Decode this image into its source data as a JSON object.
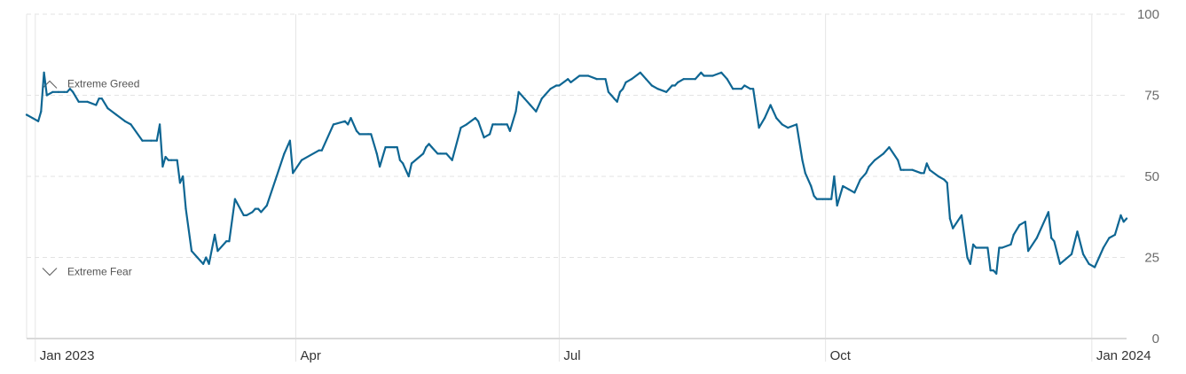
{
  "chart_data": {
    "type": "line",
    "title": "",
    "xlabel": "",
    "ylabel": "",
    "ylim": [
      0,
      100
    ],
    "yticks": [
      0,
      25,
      50,
      75,
      100
    ],
    "xlim": [
      "2022-12-29",
      "2024-01-13"
    ],
    "xticks": [
      {
        "date": "2023-01-01",
        "label": "Jan 2023"
      },
      {
        "date": "2023-04-01",
        "label": "Apr"
      },
      {
        "date": "2023-07-01",
        "label": "Jul"
      },
      {
        "date": "2023-10-01",
        "label": "Oct"
      },
      {
        "date": "2024-01-01",
        "label": "Jan 2024"
      }
    ],
    "grid": true,
    "annotations": [
      {
        "label": "Extreme Greed",
        "icon": "chevron-up-icon",
        "y": 75
      },
      {
        "label": "Extreme Fear",
        "icon": "chevron-down-icon",
        "y": 25
      }
    ],
    "colors": {
      "line": "#0e6693",
      "grid": "#e3e3e3",
      "axis_text": "#6b6b6b"
    },
    "series": [
      {
        "points": [
          [
            "2022-12-29",
            69
          ],
          [
            "2022-12-31",
            68
          ],
          [
            "2023-01-02",
            67
          ],
          [
            "2023-01-03",
            70
          ],
          [
            "2023-01-04",
            82
          ],
          [
            "2023-01-05",
            75
          ],
          [
            "2023-01-07",
            76
          ],
          [
            "2023-01-09",
            76
          ],
          [
            "2023-01-11",
            76
          ],
          [
            "2023-01-12",
            76
          ],
          [
            "2023-01-13",
            77
          ],
          [
            "2023-01-14",
            76
          ],
          [
            "2023-01-16",
            73
          ],
          [
            "2023-01-19",
            73
          ],
          [
            "2023-01-22",
            72
          ],
          [
            "2023-01-23",
            74
          ],
          [
            "2023-01-24",
            74
          ],
          [
            "2023-01-26",
            71
          ],
          [
            "2023-01-29",
            69
          ],
          [
            "2023-02-01",
            67
          ],
          [
            "2023-02-03",
            66
          ],
          [
            "2023-02-07",
            61
          ],
          [
            "2023-02-10",
            61
          ],
          [
            "2023-02-12",
            61
          ],
          [
            "2023-02-13",
            66
          ],
          [
            "2023-02-14",
            53
          ],
          [
            "2023-02-15",
            56
          ],
          [
            "2023-02-16",
            55
          ],
          [
            "2023-02-17",
            55
          ],
          [
            "2023-02-19",
            55
          ],
          [
            "2023-02-20",
            48
          ],
          [
            "2023-02-21",
            50
          ],
          [
            "2023-02-22",
            40
          ],
          [
            "2023-02-24",
            27
          ],
          [
            "2023-02-26",
            25
          ],
          [
            "2023-02-27",
            24
          ],
          [
            "2023-02-28",
            23
          ],
          [
            "2023-03-01",
            25
          ],
          [
            "2023-03-02",
            23
          ],
          [
            "2023-03-04",
            32
          ],
          [
            "2023-03-05",
            27
          ],
          [
            "2023-03-08",
            30
          ],
          [
            "2023-03-09",
            30
          ],
          [
            "2023-03-11",
            43
          ],
          [
            "2023-03-14",
            38
          ],
          [
            "2023-03-15",
            38
          ],
          [
            "2023-03-17",
            39
          ],
          [
            "2023-03-18",
            40
          ],
          [
            "2023-03-19",
            40
          ],
          [
            "2023-03-20",
            39
          ],
          [
            "2023-03-22",
            41
          ],
          [
            "2023-03-25",
            49
          ],
          [
            "2023-03-28",
            57
          ],
          [
            "2023-03-30",
            61
          ],
          [
            "2023-03-31",
            51
          ],
          [
            "2023-04-03",
            55
          ],
          [
            "2023-04-09",
            58
          ],
          [
            "2023-04-10",
            58
          ],
          [
            "2023-04-14",
            66
          ],
          [
            "2023-04-18",
            67
          ],
          [
            "2023-04-19",
            66
          ],
          [
            "2023-04-20",
            68
          ],
          [
            "2023-04-22",
            64
          ],
          [
            "2023-04-23",
            63
          ],
          [
            "2023-04-26",
            63
          ],
          [
            "2023-04-27",
            63
          ],
          [
            "2023-04-29",
            57
          ],
          [
            "2023-04-30",
            53
          ],
          [
            "2023-05-02",
            59
          ],
          [
            "2023-05-05",
            59
          ],
          [
            "2023-05-06",
            59
          ],
          [
            "2023-05-07",
            55
          ],
          [
            "2023-05-08",
            54
          ],
          [
            "2023-05-10",
            50
          ],
          [
            "2023-05-11",
            54
          ],
          [
            "2023-05-15",
            57
          ],
          [
            "2023-05-16",
            59
          ],
          [
            "2023-05-17",
            60
          ],
          [
            "2023-05-18",
            59
          ],
          [
            "2023-05-20",
            57
          ],
          [
            "2023-05-21",
            57
          ],
          [
            "2023-05-23",
            57
          ],
          [
            "2023-05-25",
            55
          ],
          [
            "2023-05-28",
            65
          ],
          [
            "2023-05-30",
            66
          ],
          [
            "2023-06-02",
            68
          ],
          [
            "2023-06-03",
            67
          ],
          [
            "2023-06-05",
            62
          ],
          [
            "2023-06-07",
            63
          ],
          [
            "2023-06-08",
            66
          ],
          [
            "2023-06-09",
            66
          ],
          [
            "2023-06-11",
            66
          ],
          [
            "2023-06-13",
            66
          ],
          [
            "2023-06-14",
            64
          ],
          [
            "2023-06-16",
            70
          ],
          [
            "2023-06-17",
            76
          ],
          [
            "2023-06-19",
            74
          ],
          [
            "2023-06-21",
            72
          ],
          [
            "2023-06-23",
            70
          ],
          [
            "2023-06-25",
            74
          ],
          [
            "2023-06-26",
            75
          ],
          [
            "2023-06-28",
            77
          ],
          [
            "2023-06-30",
            78
          ],
          [
            "2023-07-01",
            78
          ],
          [
            "2023-07-04",
            80
          ],
          [
            "2023-07-05",
            79
          ],
          [
            "2023-07-08",
            81
          ],
          [
            "2023-07-11",
            81
          ],
          [
            "2023-07-14",
            80
          ],
          [
            "2023-07-17",
            80
          ],
          [
            "2023-07-18",
            76
          ],
          [
            "2023-07-19",
            75
          ],
          [
            "2023-07-20",
            74
          ],
          [
            "2023-07-21",
            73
          ],
          [
            "2023-07-22",
            76
          ],
          [
            "2023-07-23",
            77
          ],
          [
            "2023-07-24",
            79
          ],
          [
            "2023-07-26",
            80
          ],
          [
            "2023-07-29",
            82
          ],
          [
            "2023-07-31",
            80
          ],
          [
            "2023-08-02",
            78
          ],
          [
            "2023-08-04",
            77
          ],
          [
            "2023-08-07",
            76
          ],
          [
            "2023-08-09",
            78
          ],
          [
            "2023-08-10",
            78
          ],
          [
            "2023-08-11",
            79
          ],
          [
            "2023-08-13",
            80
          ],
          [
            "2023-08-17",
            80
          ],
          [
            "2023-08-18",
            81
          ],
          [
            "2023-08-19",
            82
          ],
          [
            "2023-08-20",
            81
          ],
          [
            "2023-08-23",
            81
          ],
          [
            "2023-08-26",
            82
          ],
          [
            "2023-08-28",
            80
          ],
          [
            "2023-08-30",
            77
          ],
          [
            "2023-09-02",
            77
          ],
          [
            "2023-09-03",
            78
          ],
          [
            "2023-09-05",
            77
          ],
          [
            "2023-09-06",
            77
          ],
          [
            "2023-09-08",
            65
          ],
          [
            "2023-09-10",
            68
          ],
          [
            "2023-09-12",
            72
          ],
          [
            "2023-09-14",
            68
          ],
          [
            "2023-09-16",
            66
          ],
          [
            "2023-09-18",
            65
          ],
          [
            "2023-09-21",
            66
          ],
          [
            "2023-09-23",
            55
          ],
          [
            "2023-09-24",
            51
          ],
          [
            "2023-09-26",
            47
          ],
          [
            "2023-09-27",
            44
          ],
          [
            "2023-09-28",
            43
          ],
          [
            "2023-09-30",
            43
          ],
          [
            "2023-10-02",
            43
          ],
          [
            "2023-10-03",
            43
          ],
          [
            "2023-10-04",
            50
          ],
          [
            "2023-10-05",
            41
          ],
          [
            "2023-10-07",
            47
          ],
          [
            "2023-10-09",
            46
          ],
          [
            "2023-10-11",
            45
          ],
          [
            "2023-10-13",
            49
          ],
          [
            "2023-10-15",
            51
          ],
          [
            "2023-10-16",
            53
          ],
          [
            "2023-10-18",
            55
          ],
          [
            "2023-10-21",
            57
          ],
          [
            "2023-10-23",
            59
          ],
          [
            "2023-10-26",
            55
          ],
          [
            "2023-10-27",
            52
          ],
          [
            "2023-10-28",
            52
          ],
          [
            "2023-10-31",
            52
          ],
          [
            "2023-11-03",
            51
          ],
          [
            "2023-11-04",
            51
          ],
          [
            "2023-11-05",
            54
          ],
          [
            "2023-11-06",
            52
          ],
          [
            "2023-11-09",
            50
          ],
          [
            "2023-11-11",
            49
          ],
          [
            "2023-11-12",
            48
          ],
          [
            "2023-11-13",
            37
          ],
          [
            "2023-11-14",
            34
          ],
          [
            "2023-11-17",
            38
          ],
          [
            "2023-11-19",
            25
          ],
          [
            "2023-11-20",
            23
          ],
          [
            "2023-11-21",
            29
          ],
          [
            "2023-11-22",
            28
          ],
          [
            "2023-11-26",
            28
          ],
          [
            "2023-11-27",
            21
          ],
          [
            "2023-11-28",
            21
          ],
          [
            "2023-11-29",
            20
          ],
          [
            "2023-11-30",
            28
          ],
          [
            "2023-12-01",
            28
          ],
          [
            "2023-12-04",
            29
          ],
          [
            "2023-12-05",
            32
          ],
          [
            "2023-12-07",
            35
          ],
          [
            "2023-12-09",
            36
          ],
          [
            "2023-12-10",
            27
          ],
          [
            "2023-12-13",
            31
          ],
          [
            "2023-12-17",
            39
          ],
          [
            "2023-12-18",
            31
          ],
          [
            "2023-12-19",
            30
          ],
          [
            "2023-12-21",
            23
          ],
          [
            "2023-12-25",
            26
          ],
          [
            "2023-12-27",
            33
          ],
          [
            "2023-12-29",
            26
          ],
          [
            "2023-12-31",
            23
          ],
          [
            "2024-01-02",
            22
          ],
          [
            "2024-01-05",
            28
          ],
          [
            "2024-01-07",
            31
          ],
          [
            "2024-01-09",
            32
          ],
          [
            "2024-01-10",
            35
          ],
          [
            "2024-01-11",
            38
          ],
          [
            "2024-01-12",
            36
          ],
          [
            "2024-01-13",
            37
          ]
        ]
      }
    ]
  }
}
